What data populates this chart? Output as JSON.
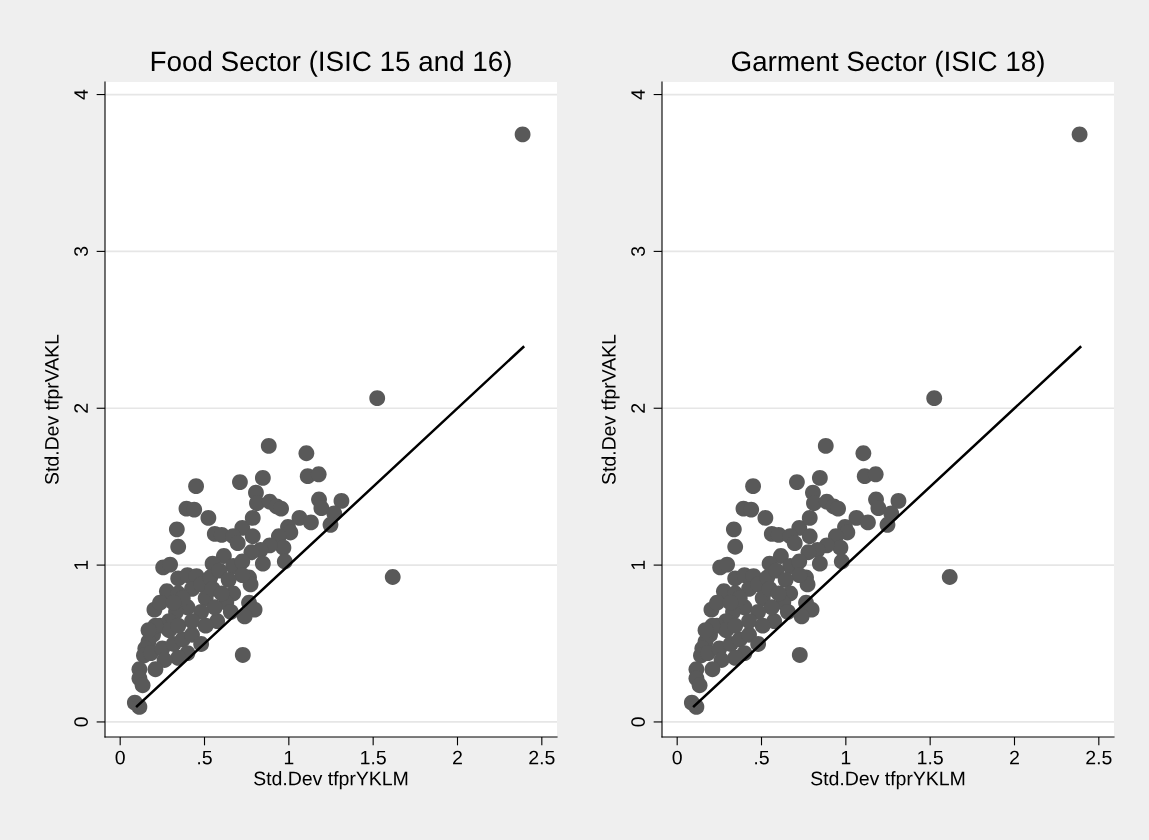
{
  "chart_data": [
    {
      "type": "scatter",
      "title": "Food Sector (ISIC 15 and 16)",
      "xlabel": "Std.Dev tfprYKLM",
      "ylabel": "Std.Dev tfprVAKL",
      "xlim": [
        -0.09,
        2.59
      ],
      "ylim": [
        -0.096,
        4.08
      ],
      "xticks": [
        0,
        {
          "value": 0.5,
          "label": ".5"
        },
        1,
        1.5,
        2,
        2.5
      ],
      "yticks": [
        0,
        1,
        2,
        3,
        4
      ],
      "grid": "y",
      "legend": false,
      "series": [
        {
          "type": "scatter",
          "color": "#595959",
          "marker": "circle",
          "x": [
            2.386,
            1.524,
            1.616,
            0.727,
            0.881,
            1.104,
            0.71,
            0.45,
            0.846,
            1.112,
            1.177,
            0.805,
            0.393,
            0.439,
            0.336,
            0.344,
            0.523,
            0.811,
            0.887,
            0.928,
            0.954,
            1.179,
            1.193,
            1.312,
            1.269,
            1.247,
            1.063,
            1.131,
            0.995,
            1.009,
            0.724,
            0.786,
            0.561,
            0.602,
            0.67,
            0.786,
            0.697,
            0.941,
            0.968,
            0.887,
            0.832,
            0.846,
            0.976,
            0.778,
            0.615,
            0.548,
            0.67,
            0.724,
            0.764,
            0.773,
            0.724,
            0.255,
            0.296,
            0.344,
            0.399,
            0.453,
            0.277,
            0.203,
            0.236,
            0.344,
            0.426,
            0.48,
            0.534,
            0.588,
            0.643,
            0.67,
            0.629,
            0.656,
            0.764,
            0.797,
            0.738,
            0.575,
            0.507,
            0.399,
            0.331,
            0.29,
            0.236,
            0.195,
            0.168,
            0.149,
            0.141,
            0.182,
            0.25,
            0.317,
            0.371,
            0.426,
            0.48,
            0.399,
            0.344,
            0.263,
            0.209,
            0.114,
            0.114,
            0.133,
            0.087,
            0.114,
            0.507,
            0.561,
            0.548,
            0.602,
            0.29,
            0.344,
            0.48,
            0.426,
            0.371,
            0.317,
            0.209,
            0.168
          ],
          "values": [
            3.746,
            2.064,
            0.924,
            0.427,
            1.76,
            1.713,
            1.529,
            1.503,
            1.556,
            1.567,
            1.579,
            1.462,
            1.36,
            1.354,
            1.228,
            1.117,
            1.301,
            1.395,
            1.404,
            1.374,
            1.36,
            1.418,
            1.363,
            1.409,
            1.33,
            1.257,
            1.301,
            1.272,
            1.243,
            1.208,
            1.237,
            1.301,
            1.199,
            1.193,
            1.184,
            1.184,
            1.14,
            1.184,
            1.111,
            1.126,
            1.096,
            1.009,
            1.023,
            1.082,
            1.058,
            1.009,
            0.994,
            1.023,
            0.921,
            0.877,
            0.936,
            0.985,
            1.003,
            0.915,
            0.936,
            0.93,
            0.833,
            0.716,
            0.76,
            0.819,
            0.848,
            0.877,
            0.921,
            0.965,
            0.906,
            0.819,
            0.76,
            0.702,
            0.76,
            0.716,
            0.673,
            0.643,
            0.614,
            0.731,
            0.702,
            0.643,
            0.614,
            0.556,
            0.512,
            0.468,
            0.424,
            0.439,
            0.468,
            0.497,
            0.526,
            0.556,
            0.497,
            0.439,
            0.409,
            0.395,
            0.336,
            0.336,
            0.278,
            0.234,
            0.123,
            0.096,
            0.789,
            0.731,
            0.848,
            0.819,
            0.585,
            0.614,
            0.702,
            0.643,
            0.789,
            0.76,
            0.614,
            0.585
          ]
        },
        {
          "type": "line",
          "color": "#000000",
          "marker": "none",
          "x": [
            0.1,
            2.39
          ],
          "values": [
            0.1,
            2.39
          ]
        }
      ]
    },
    {
      "type": "scatter",
      "title": "Garment Sector (ISIC 18)",
      "xlabel": "Std.Dev tfprYKLM",
      "ylabel": "Std.Dev tfprVAKL",
      "xlim": [
        -0.09,
        2.59
      ],
      "ylim": [
        -0.096,
        4.08
      ],
      "xticks": [
        0,
        {
          "value": 0.5,
          "label": ".5"
        },
        1,
        1.5,
        2,
        2.5
      ],
      "yticks": [
        0,
        1,
        2,
        3,
        4
      ],
      "grid": "y",
      "legend": false,
      "series": [
        {
          "type": "scatter",
          "color": "#595959",
          "marker": "circle",
          "x": [
            2.386,
            1.524,
            1.616,
            0.727,
            0.881,
            1.104,
            0.71,
            0.45,
            0.846,
            1.112,
            1.177,
            0.805,
            0.393,
            0.439,
            0.336,
            0.344,
            0.523,
            0.811,
            0.887,
            0.928,
            0.954,
            1.179,
            1.193,
            1.312,
            1.269,
            1.247,
            1.063,
            1.131,
            0.995,
            1.009,
            0.724,
            0.786,
            0.561,
            0.602,
            0.67,
            0.786,
            0.697,
            0.941,
            0.968,
            0.887,
            0.832,
            0.846,
            0.976,
            0.778,
            0.615,
            0.548,
            0.67,
            0.724,
            0.764,
            0.773,
            0.724,
            0.255,
            0.296,
            0.344,
            0.399,
            0.453,
            0.277,
            0.203,
            0.236,
            0.344,
            0.426,
            0.48,
            0.534,
            0.588,
            0.643,
            0.67,
            0.629,
            0.656,
            0.764,
            0.797,
            0.738,
            0.575,
            0.507,
            0.399,
            0.331,
            0.29,
            0.236,
            0.195,
            0.168,
            0.149,
            0.141,
            0.182,
            0.25,
            0.317,
            0.371,
            0.426,
            0.48,
            0.399,
            0.344,
            0.263,
            0.209,
            0.114,
            0.114,
            0.133,
            0.087,
            0.114,
            0.507,
            0.561,
            0.548,
            0.602,
            0.29,
            0.344,
            0.48,
            0.426,
            0.371,
            0.317,
            0.209,
            0.168
          ],
          "values": [
            3.746,
            2.064,
            0.924,
            0.427,
            1.76,
            1.713,
            1.529,
            1.503,
            1.556,
            1.567,
            1.579,
            1.462,
            1.36,
            1.354,
            1.228,
            1.117,
            1.301,
            1.395,
            1.404,
            1.374,
            1.36,
            1.418,
            1.363,
            1.409,
            1.33,
            1.257,
            1.301,
            1.272,
            1.243,
            1.208,
            1.237,
            1.301,
            1.199,
            1.193,
            1.184,
            1.184,
            1.14,
            1.184,
            1.111,
            1.126,
            1.096,
            1.009,
            1.023,
            1.082,
            1.058,
            1.009,
            0.994,
            1.023,
            0.921,
            0.877,
            0.936,
            0.985,
            1.003,
            0.915,
            0.936,
            0.93,
            0.833,
            0.716,
            0.76,
            0.819,
            0.848,
            0.877,
            0.921,
            0.965,
            0.906,
            0.819,
            0.76,
            0.702,
            0.76,
            0.716,
            0.673,
            0.643,
            0.614,
            0.731,
            0.702,
            0.643,
            0.614,
            0.556,
            0.512,
            0.468,
            0.424,
            0.439,
            0.468,
            0.497,
            0.526,
            0.556,
            0.497,
            0.439,
            0.409,
            0.395,
            0.336,
            0.336,
            0.278,
            0.234,
            0.123,
            0.096,
            0.789,
            0.731,
            0.848,
            0.819,
            0.585,
            0.614,
            0.702,
            0.643,
            0.789,
            0.76,
            0.614,
            0.585
          ]
        },
        {
          "type": "line",
          "color": "#000000",
          "marker": "none",
          "x": [
            0.1,
            2.39
          ],
          "values": [
            0.1,
            2.39
          ]
        }
      ]
    }
  ]
}
